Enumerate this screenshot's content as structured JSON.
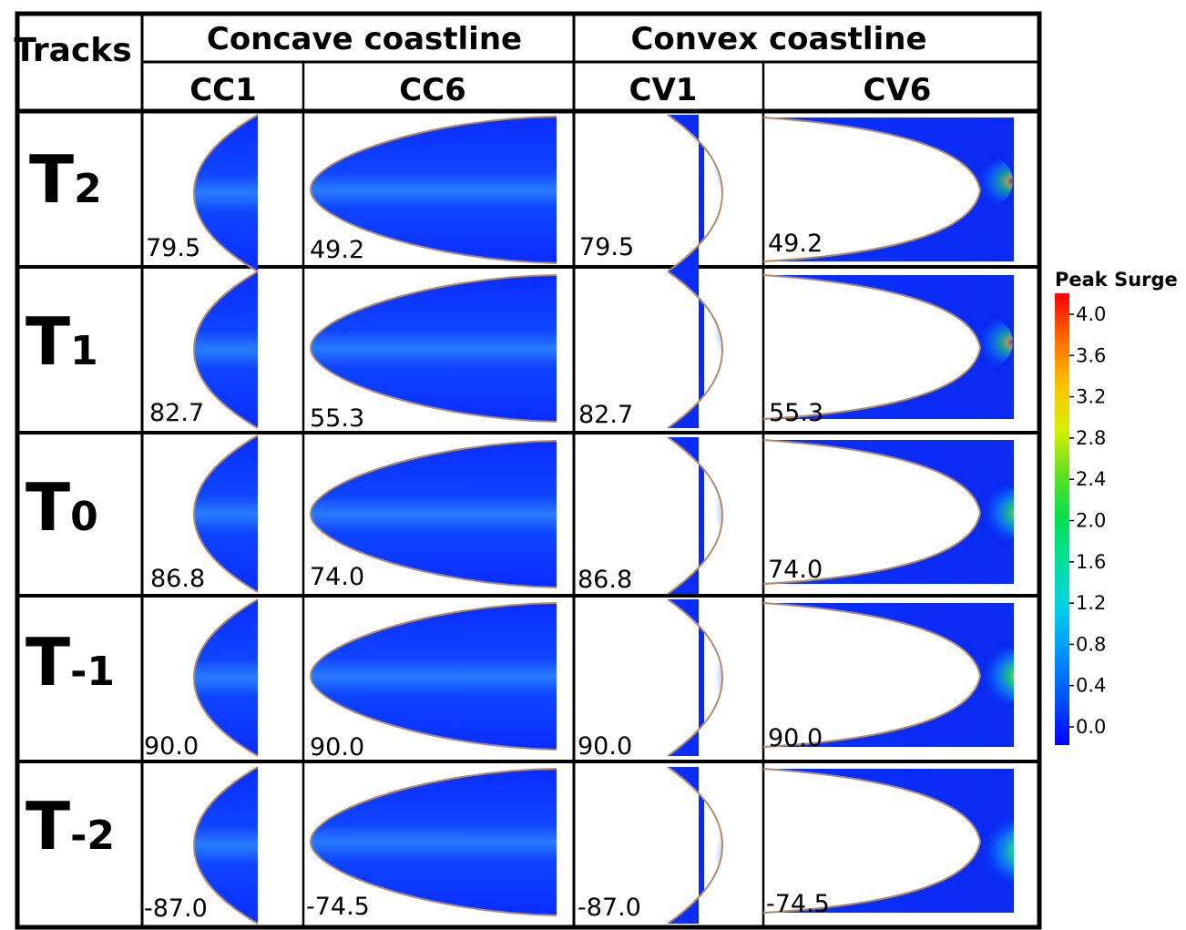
{
  "header": {
    "tracks_label": "Tracks",
    "groups": [
      "Concave coastline",
      "Convex coastline"
    ],
    "columns": [
      "CC1",
      "CC6",
      "CV1",
      "CV6"
    ]
  },
  "rows": [
    {
      "track_main": "T",
      "track_sub": "2",
      "values": [
        "79.5",
        "49.2",
        "79.5",
        "49.2"
      ]
    },
    {
      "track_main": "T",
      "track_sub": "1",
      "values": [
        "82.7",
        "55.3",
        "82.7",
        "55.3"
      ]
    },
    {
      "track_main": "T",
      "track_sub": "0",
      "values": [
        "86.8",
        "74.0",
        "86.8",
        "74.0"
      ]
    },
    {
      "track_main": "T",
      "track_sub": "-1",
      "values": [
        "90.0",
        "90.0",
        "90.0",
        "90.0"
      ]
    },
    {
      "track_main": "T",
      "track_sub": "-2",
      "values": [
        "-87.0",
        "-74.5",
        "-87.0",
        "-74.5"
      ]
    }
  ],
  "legend": {
    "title": "Peak Surge (m)",
    "ticks": [
      "4.0",
      "3.6",
      "3.2",
      "2.8",
      "2.4",
      "2.0",
      "1.6",
      "1.2",
      "0.8",
      "0.4",
      "0.0"
    ],
    "colors": [
      "#ff0000",
      "#ff8000",
      "#ffd000",
      "#c8f000",
      "#40e030",
      "#00e060",
      "#00e0c0",
      "#00b8ff",
      "#0070ff",
      "#1030ff",
      "#0000ff"
    ]
  },
  "map_colors": {
    "ocean": "#0022ee",
    "band": "#1e6aff",
    "glow_green": "#22e26a",
    "glow_yellow": "#f5e21a",
    "glow_red": "#e61e0c",
    "coast": "#b08a6a"
  }
}
